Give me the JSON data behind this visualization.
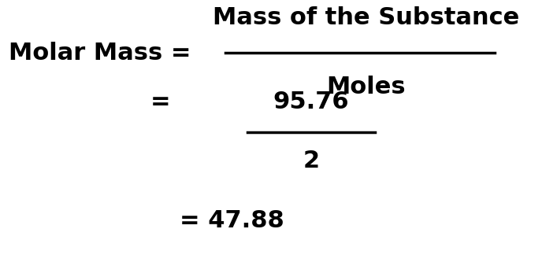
{
  "background_color": "#ffffff",
  "figsize": [
    6.88,
    3.52
  ],
  "dpi": 100,
  "line1_left": "Molar Mass = ",
  "line1_numerator": "Mass of the Substance",
  "line1_denominator": "Moles",
  "line2_prefix": "= ",
  "line2_numerator": "95.76",
  "line2_denominator": "2",
  "line3_text": "= 47.88",
  "font_size": 22,
  "text_color": "#000000",
  "line_color": "#000000",
  "line_width": 2.5
}
